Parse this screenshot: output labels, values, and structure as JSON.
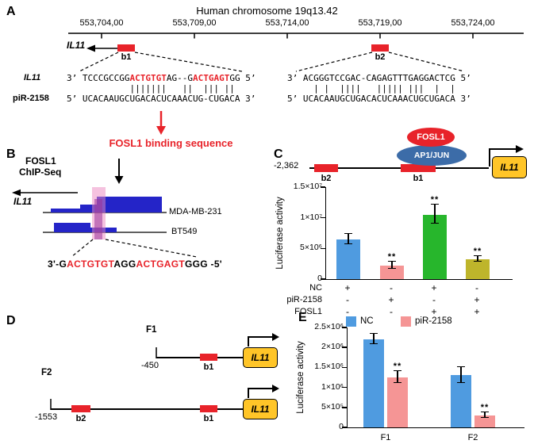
{
  "accent_colors": {
    "red": "#e8232a",
    "peak_blue": "#2424c8",
    "ap1_blue": "#3c6ca8",
    "il11_yellow": "#ffc528",
    "highlight_pink": "#ec86c0"
  },
  "panel_a": {
    "label": "A",
    "title": "Human chromosome 19q13.42",
    "ruler_ticks": [
      "553,704,00",
      "553,709,00",
      "553,714,00",
      "553,719,00",
      "553,724,00"
    ],
    "gene_label": "IL11",
    "b1": "b1",
    "b2": "b2",
    "align_left": {
      "top_label": "IL11",
      "top_seq": [
        {
          "t": "3’ TCCCGCCGG"
        },
        {
          "t": "ACTGTGT",
          "hl": true
        },
        {
          "t": "AG--G"
        },
        {
          "t": "ACTGAGT",
          "hl": true
        },
        {
          "t": "GG 5’"
        }
      ],
      "pipes": "            |||||||   ||  ||| ||",
      "bottom_label": "piR-2158",
      "bottom_seq": [
        {
          "t": "5’ UCACAAUGCUGACACUCAAACUG-CUGACA 3’"
        }
      ]
    },
    "align_right": {
      "top_seq": [
        {
          "t": "3’ ACGGGTCCGAC-CAGAGTTTGAGGACTCG 5’"
        }
      ],
      "pipes": "     | |  ||||   ||||| |||  |  |",
      "bottom_seq": [
        {
          "t": "5’ UCACAAUGCUGACACUCAAACUGCUGACA 3’"
        }
      ]
    },
    "binding_caption": "FOSL1 binding sequence"
  },
  "panel_b": {
    "label": "B",
    "chip_label_line1": "FOSL1",
    "chip_label_line2": "ChIP-Seq",
    "gene_label": "IL11",
    "track1": "MDA-MB-231",
    "track2": "BT549",
    "sequence": [
      {
        "t": "3'-G"
      },
      {
        "t": "ACTGTGT",
        "hl": true
      },
      {
        "t": "AGG"
      },
      {
        "t": "ACTGAGT",
        "hl": true
      },
      {
        "t": "GGG -5'"
      }
    ]
  },
  "panel_c": {
    "label": "C",
    "position_label": "-2,362",
    "b1": "b1",
    "b2": "b2",
    "fosl1": "FOSL1",
    "ap1jun": "AP1/JUN",
    "gene_box": "IL11"
  },
  "panel_d": {
    "label": "D",
    "f1": {
      "name": "F1",
      "start": "-450",
      "sites": [
        "b1"
      ],
      "gene": "IL11"
    },
    "f2": {
      "name": "F2",
      "start": "-1553",
      "sites": [
        "b2",
        "b1"
      ],
      "gene": "IL11"
    }
  },
  "panel_e": {
    "label": "E"
  },
  "chart_data": [
    {
      "id": "panel_c_luciferase",
      "type": "bar",
      "title": "",
      "xlabel": "",
      "ylabel": "Luciferase activity",
      "ylim": [
        0,
        15000000
      ],
      "grid": false,
      "yticks": [
        {
          "label": "0",
          "value": 0
        },
        {
          "label": "5×10⁶",
          "value": 5000000
        },
        {
          "label": "1×10⁷",
          "value": 10000000
        },
        {
          "label": "1.5×10⁷",
          "value": 15000000
        }
      ],
      "bars": [
        {
          "condition": "NC",
          "value": 6500000,
          "error": 800000,
          "color": "#4f9be0",
          "sig": ""
        },
        {
          "condition": "piR-2158",
          "value": 2200000,
          "error": 500000,
          "color": "#f59595",
          "sig": "**"
        },
        {
          "condition": "NC + FOSL1",
          "value": 10500000,
          "error": 1500000,
          "color": "#27b62c",
          "sig": "**"
        },
        {
          "condition": "piR-2158 + FOSL1",
          "value": 3200000,
          "error": 400000,
          "color": "#beb52b",
          "sig": "**"
        }
      ],
      "conditions": {
        "rows": [
          {
            "name": "NC",
            "values": [
              "+",
              "-",
              "+",
              "-"
            ]
          },
          {
            "name": "piR-2158",
            "values": [
              "-",
              "+",
              "-",
              "+"
            ]
          },
          {
            "name": "FOSL1",
            "values": [
              "-",
              "-",
              "+",
              "+"
            ]
          }
        ]
      }
    },
    {
      "id": "panel_e_luciferase",
      "type": "bar",
      "title": "",
      "xlabel": "",
      "ylabel": "Luciferase activity",
      "ylim": [
        0,
        2500000
      ],
      "grid": false,
      "legend_position": "top",
      "yticks": [
        {
          "label": "0",
          "value": 0
        },
        {
          "label": "5×10⁵",
          "value": 500000
        },
        {
          "label": "1×10⁶",
          "value": 1000000
        },
        {
          "label": "1.5×10⁶",
          "value": 1500000
        },
        {
          "label": "2×10⁶",
          "value": 2000000
        },
        {
          "label": "2.5×10⁶",
          "value": 2500000
        }
      ],
      "categories": [
        "F1",
        "F2"
      ],
      "series": [
        {
          "name": "NC",
          "color": "#4f9be0",
          "values": [
            2200000,
            1300000
          ],
          "errors": [
            120000,
            180000
          ],
          "sig": [
            "",
            ""
          ]
        },
        {
          "name": "piR-2158",
          "color": "#f59595",
          "values": [
            1250000,
            300000
          ],
          "errors": [
            130000,
            60000
          ],
          "sig": [
            "**",
            "**"
          ]
        }
      ]
    }
  ]
}
